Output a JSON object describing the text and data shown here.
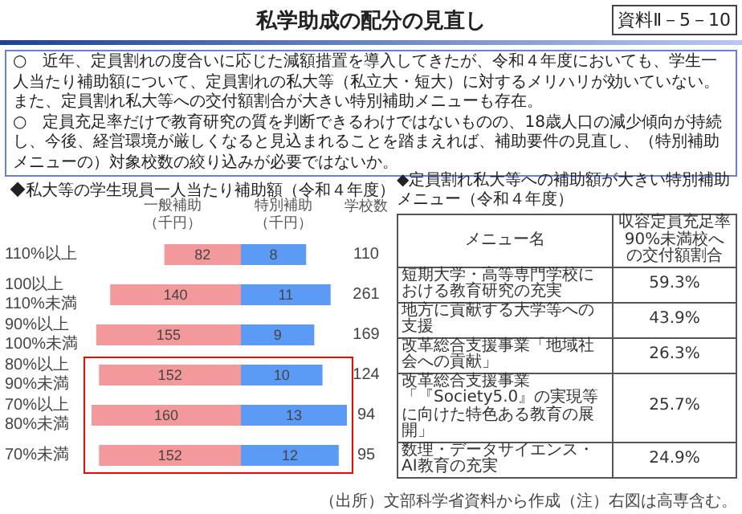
{
  "chart_data": [
    {
      "type": "other",
      "title": "私学助成の配分の見直し",
      "annotations": [
        "資料Ⅱ－5－10",
        "○　近年、定員割れの度合いに応じた減額措置を導入してきたが、令和４年度においても、学生一人当たり補助額について、定員割れの私大等（私立大・短大）に対するメリハリが効いていない。また、定員割れ私大等への交付額割合が大きい特別補助メニューも存在。",
        "○　定員充足率だけで教育研究の質を判断できるわけではないものの、18歳人口の減少傾向が持続し、今後、経営環境が厳しくなると見込まれることを踏まえれば、補助要件の見直し、（特別補助メニューの）対象校数の絞り込みが必要ではないか。"
      ]
    },
    {
      "type": "bar",
      "orientation": "horizontal",
      "title": "◆私大等の学生現員一人当たり補助額（令和４年度）",
      "categories": [
        "110%以上",
        "100以上\n110%未満",
        "90%以上\n100%未満",
        "80%以上\n90%未満",
        "70%以上\n80%未満",
        "70%未満"
      ],
      "series": [
        {
          "name": "一般補助（千円）",
          "color": "#f4999b",
          "values": [
            82,
            140,
            155,
            152,
            160,
            152
          ]
        }
      ],
      "data_labels": true,
      "tick_labels": "y"
    },
    {
      "type": "bar",
      "orientation": "horizontal",
      "categories": [
        null,
        null,
        null,
        null,
        null,
        null
      ],
      "series": [
        {
          "name": "特別補助（千円）",
          "color": "#5b9bf5",
          "values": [
            8,
            11,
            9,
            10,
            13,
            12
          ]
        }
      ],
      "data_labels": true,
      "tick_labels": false,
      "annotations": [
        "学校数",
        "110",
        "261",
        "169",
        "124",
        "94",
        "95"
      ]
    },
    {
      "type": "other",
      "title": "◆定員割れ私大等への補助額が大きい特別補助メニュー（令和４年度）",
      "xlabel": "メニュー名",
      "ylabel": "収容定員充足率90%未満校への交付額割合",
      "categories": [
        "短期大学・高等専門学校における教育研究の充実",
        "地方に貢献する大学等への支援",
        "改革総合支援事業「地域社会への貢献」",
        "改革総合支援事業「『Society5.0』の実現等に向けた特色ある教育の展開」",
        "数理・データサイエンス・AI教育の充実"
      ],
      "value_labels": [
        "59.3%",
        "43.9%",
        "26.3%",
        "25.7%",
        "24.9%"
      ],
      "annotations": [
        "（出所）文部科学省資料から作成（注）右図は高専含む。"
      ]
    }
  ]
}
